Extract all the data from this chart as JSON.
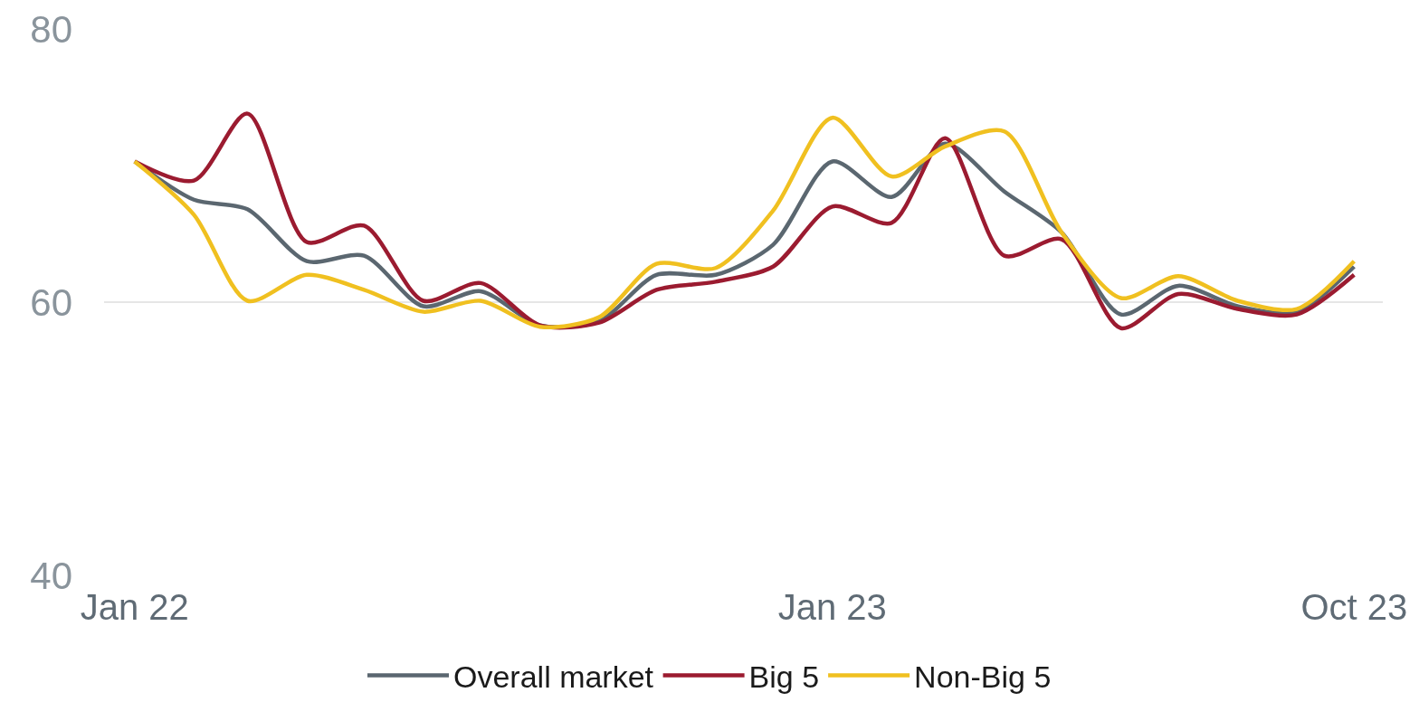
{
  "chart_data": {
    "type": "line",
    "x": [
      "2022-01",
      "2022-02",
      "2022-03",
      "2022-04",
      "2022-05",
      "2022-06",
      "2022-07",
      "2022-08",
      "2022-09",
      "2022-10",
      "2022-11",
      "2022-12",
      "2023-01",
      "2023-02",
      "2023-03",
      "2023-04",
      "2023-05",
      "2023-06",
      "2023-07",
      "2023-08",
      "2023-09",
      "2023-10"
    ],
    "series": [
      {
        "name": "Overall market",
        "color": "#5b6770",
        "values": [
          70.3,
          67.5,
          66.8,
          63.0,
          63.4,
          59.7,
          60.8,
          58.3,
          58.6,
          62.0,
          62.0,
          64.2,
          70.3,
          67.7,
          71.6,
          68.1,
          65.1,
          59.1,
          61.2,
          59.7,
          59.3,
          62.6
        ]
      },
      {
        "name": "Big 5",
        "color": "#9b1b30",
        "values": [
          70.3,
          68.9,
          73.8,
          64.4,
          65.6,
          60.1,
          61.4,
          58.3,
          58.5,
          60.9,
          61.5,
          62.6,
          67.0,
          65.8,
          72.0,
          63.4,
          64.6,
          58.1,
          60.6,
          59.5,
          59.1,
          62.0
        ]
      },
      {
        "name": "Non-Big 5",
        "color": "#f0c020",
        "values": [
          70.3,
          66.4,
          60.1,
          62.0,
          60.9,
          59.3,
          60.1,
          58.2,
          58.9,
          62.8,
          62.5,
          66.7,
          73.5,
          69.2,
          71.4,
          72.5,
          65.1,
          60.3,
          61.9,
          60.1,
          59.5,
          63.0
        ]
      }
    ],
    "xlim": [
      "2021-12-16",
      "2023-10-16"
    ],
    "xticks": [
      {
        "value": "2022-01",
        "label": "Jan 22"
      },
      {
        "value": "2023-01",
        "label": "Jan 23"
      },
      {
        "value": "2023-10",
        "label": "Oct 23"
      }
    ],
    "ylim": [
      40,
      80
    ],
    "yticks": [
      40,
      60,
      80
    ],
    "grid": "y",
    "legend": "bottom",
    "line_style": "solid"
  }
}
